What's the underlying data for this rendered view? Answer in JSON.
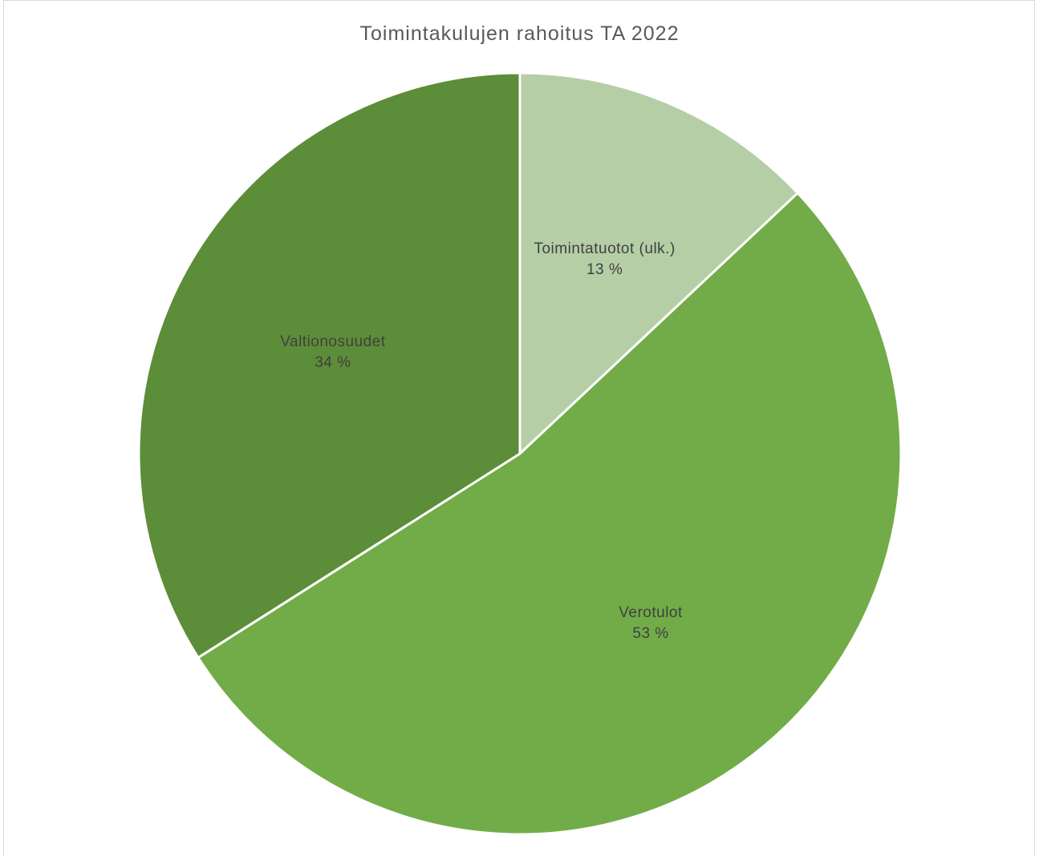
{
  "chart_data": {
    "type": "pie",
    "title": "Toimintakulujen rahoitus TA 2022",
    "slices": [
      {
        "label": "Toimintatuotot (ulk.)",
        "value": 13,
        "value_label": "13 %",
        "color": "#b5cea6"
      },
      {
        "label": "Verotulot",
        "value": 53,
        "value_label": "53 %",
        "color": "#72ac48"
      },
      {
        "label": "Valtionosuudet",
        "value": 34,
        "value_label": "34 %",
        "color": "#5c8d38"
      }
    ],
    "legend": "none",
    "data_labels": "inside"
  }
}
